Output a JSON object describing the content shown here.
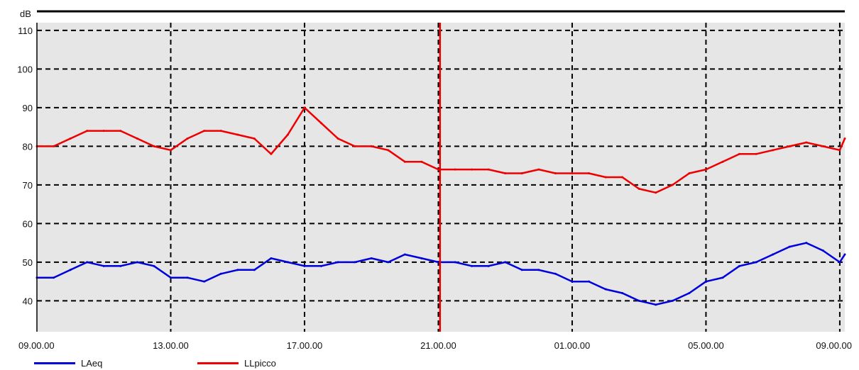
{
  "chart_data": {
    "type": "line",
    "ylabel": "dB",
    "ylim": [
      32,
      112
    ],
    "yticks": [
      40,
      50,
      60,
      70,
      80,
      90,
      100,
      110
    ],
    "xlim_hours": [
      0,
      24.15
    ],
    "xticks": [
      {
        "hour": 0,
        "label": "09.00.00"
      },
      {
        "hour": 4,
        "label": "13.00.00"
      },
      {
        "hour": 8,
        "label": "17.00.00"
      },
      {
        "hour": 12,
        "label": "21.00.00"
      },
      {
        "hour": 16,
        "label": "01.00.00"
      },
      {
        "hour": 20,
        "label": "05.00.00"
      },
      {
        "hour": 24,
        "label": "09.00.00"
      }
    ],
    "grid": true,
    "cursor_hour": 12.05,
    "legend_position": "bottom-left",
    "series": [
      {
        "name": "LAeq",
        "color": "#0000dd",
        "hour": [
          0,
          0.5,
          1,
          1.5,
          2,
          2.5,
          3,
          3.5,
          4,
          4.5,
          5,
          5.5,
          6,
          6.5,
          7,
          7.5,
          8,
          8.5,
          9,
          9.5,
          10,
          10.5,
          11,
          11.5,
          12,
          12.5,
          13,
          13.5,
          14,
          14.5,
          15,
          15.5,
          16,
          16.5,
          17,
          17.5,
          18,
          18.5,
          19,
          19.5,
          20,
          20.5,
          21,
          21.5,
          22,
          22.5,
          23,
          23.5,
          24,
          24.15
        ],
        "values": [
          46,
          46,
          48,
          50,
          49,
          49,
          50,
          49,
          46,
          46,
          45,
          47,
          48,
          48,
          51,
          50,
          49,
          49,
          50,
          50,
          51,
          50,
          52,
          51,
          50,
          50,
          49,
          49,
          50,
          48,
          48,
          47,
          45,
          45,
          43,
          42,
          40,
          39,
          40,
          42,
          45,
          46,
          49,
          50,
          52,
          54,
          55,
          53,
          50,
          52
        ]
      },
      {
        "name": "LLpicco",
        "color": "#ee0000",
        "hour": [
          0,
          0.5,
          1,
          1.5,
          2,
          2.5,
          3,
          3.5,
          4,
          4.5,
          5,
          5.5,
          6,
          6.5,
          7,
          7.5,
          8,
          8.5,
          9,
          9.5,
          10,
          10.5,
          11,
          11.5,
          12,
          12.5,
          13,
          13.5,
          14,
          14.5,
          15,
          15.5,
          16,
          16.5,
          17,
          17.5,
          18,
          18.5,
          19,
          19.5,
          20,
          20.5,
          21,
          21.5,
          22,
          22.5,
          23,
          23.5,
          24,
          24.15
        ],
        "values": [
          80,
          80,
          82,
          84,
          84,
          84,
          82,
          80,
          79,
          82,
          84,
          84,
          83,
          82,
          78,
          83,
          90,
          86,
          82,
          80,
          80,
          79,
          76,
          76,
          74,
          74,
          74,
          74,
          73,
          73,
          74,
          73,
          73,
          73,
          72,
          72,
          69,
          68,
          70,
          73,
          74,
          76,
          78,
          78,
          79,
          80,
          81,
          80,
          79,
          82
        ]
      }
    ]
  }
}
